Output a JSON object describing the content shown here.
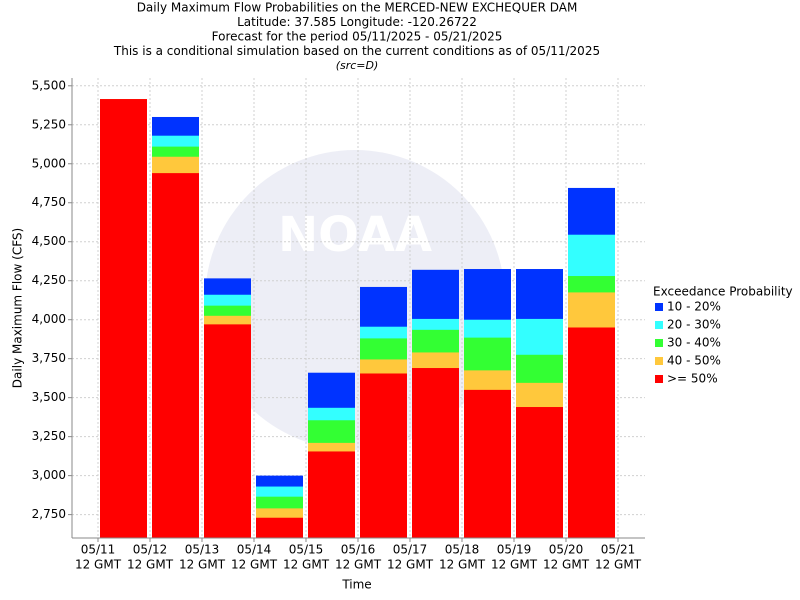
{
  "chart_data": {
    "type": "overlap-bar",
    "title": [
      "Daily Maximum Flow Probabilities on the MERCED-NEW EXCHEQUER DAM",
      "Latitude: 37.585 Longitude: -120.26722",
      "Forecast for the period 05/11/2025 - 05/21/2025",
      "This is a conditional simulation based on the current conditions as of 05/11/2025"
    ],
    "subtitle": "(src=D)",
    "watermark": "NOAA",
    "x_label": "Time",
    "y_label": "Daily Maximum Flow (CFS)",
    "legend_title": "Exceedance Probability",
    "xticks": [
      [
        "05/11",
        "12 GMT"
      ],
      [
        "05/12",
        "12 GMT"
      ],
      [
        "05/13",
        "12 GMT"
      ],
      [
        "05/14",
        "12 GMT"
      ],
      [
        "05/15",
        "12 GMT"
      ],
      [
        "05/16",
        "12 GMT"
      ],
      [
        "05/17",
        "12 GMT"
      ],
      [
        "05/18",
        "12 GMT"
      ],
      [
        "05/19",
        "12 GMT"
      ],
      [
        "05/20",
        "12 GMT"
      ],
      [
        "05/21",
        "12 GMT"
      ]
    ],
    "series": [
      {
        "name": "10 - 20%",
        "color": "#0033ff",
        "values": [
          5415,
          5300,
          4265,
          3000,
          3660,
          4210,
          4320,
          4325,
          4325,
          4845
        ]
      },
      {
        "name": "20 - 30%",
        "color": "#33ffff",
        "values": [
          5415,
          5180,
          4160,
          2930,
          3435,
          3955,
          4005,
          4000,
          4005,
          4545
        ]
      },
      {
        "name": "30 - 40%",
        "color": "#33ff33",
        "values": [
          5415,
          5110,
          4090,
          2865,
          3355,
          3880,
          3935,
          3885,
          3775,
          4280
        ]
      },
      {
        "name": "40 - 50%",
        "color": "#ffc83c",
        "values": [
          5415,
          5045,
          4025,
          2790,
          3210,
          3745,
          3790,
          3675,
          3595,
          4175
        ]
      },
      {
        "name": ">= 50%",
        "color": "#ff0000",
        "values": [
          5415,
          4940,
          3970,
          2730,
          3155,
          3655,
          3690,
          3550,
          3440,
          3950
        ]
      }
    ],
    "ylim": [
      2600,
      5550
    ],
    "yticks": [
      {
        "value": 2750,
        "label": "2,750"
      },
      {
        "value": 3000,
        "label": "3,000"
      },
      {
        "value": 3250,
        "label": "3,250"
      },
      {
        "value": 3500,
        "label": "3,500"
      },
      {
        "value": 3750,
        "label": "3,750"
      },
      {
        "value": 4000,
        "label": "4,000"
      },
      {
        "value": 4250,
        "label": "4,250"
      },
      {
        "value": 4500,
        "label": "4,500"
      },
      {
        "value": 4750,
        "label": "4,750"
      },
      {
        "value": 5000,
        "label": "5,000"
      },
      {
        "value": 5250,
        "label": "5,250"
      },
      {
        "value": 5500,
        "label": "5,500"
      }
    ],
    "grid": true,
    "legend": "right"
  }
}
